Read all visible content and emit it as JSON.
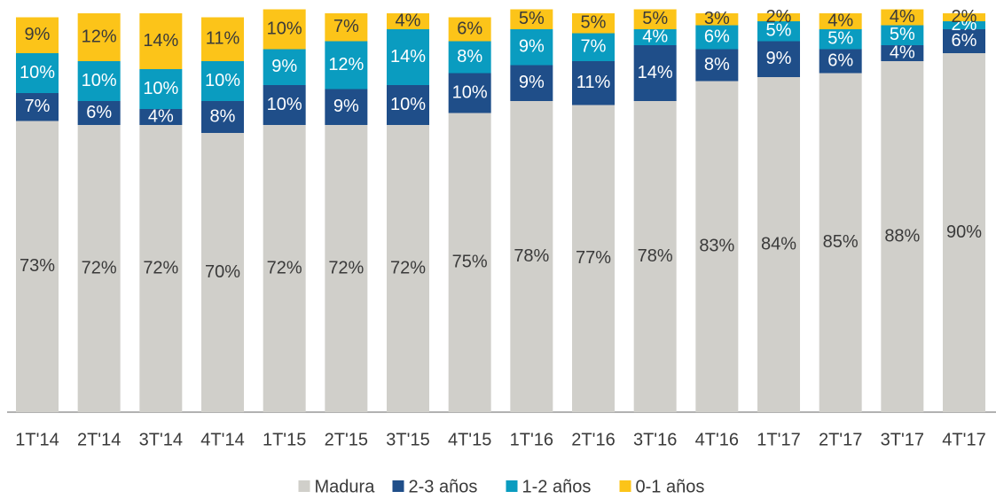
{
  "chart_data": {
    "type": "stacked_bar",
    "categories": [
      "1T'14",
      "2T'14",
      "3T'14",
      "4T'14",
      "1T'15",
      "2T'15",
      "3T'15",
      "4T'15",
      "1T'16",
      "2T'16",
      "3T'16",
      "4T'16",
      "1T'17",
      "2T'17",
      "3T'17",
      "4T'17"
    ],
    "ylim": [
      0,
      100
    ],
    "legend": "bottom",
    "series": [
      {
        "name": "Madura",
        "color": "#d0cfca",
        "label_color": "#3a3a3a",
        "values": [
          73,
          72,
          72,
          70,
          72,
          72,
          72,
          75,
          78,
          77,
          78,
          83,
          84,
          85,
          88,
          90
        ],
        "value_labels": [
          "73%",
          "72%",
          "72%",
          "70%",
          "72%",
          "72%",
          "72%",
          "75%",
          "78%",
          "77%",
          "78%",
          "83%",
          "84%",
          "85%",
          "88%",
          "90%"
        ]
      },
      {
        "name": "2-3 años",
        "color": "#1f4e89",
        "label_color": "#ffffff",
        "values": [
          7,
          6,
          4,
          8,
          10,
          9,
          10,
          10,
          9,
          11,
          14,
          8,
          9,
          6,
          4,
          6
        ],
        "value_labels": [
          "7%",
          "6%",
          "4%",
          "8%",
          "10%",
          "9%",
          "10%",
          "10%",
          "9%",
          "11%",
          "14%",
          "8%",
          "9%",
          "6%",
          "4%",
          "6%"
        ]
      },
      {
        "name": "1-2 años",
        "color": "#0a9cc0",
        "label_color": "#ffffff",
        "values": [
          10,
          10,
          10,
          10,
          9,
          12,
          14,
          8,
          9,
          7,
          4,
          6,
          5,
          5,
          5,
          2
        ],
        "value_labels": [
          "10%",
          "10%",
          "10%",
          "10%",
          "9%",
          "12%",
          "14%",
          "8%",
          "9%",
          "7%",
          "4%",
          "6%",
          "5%",
          "5%",
          "5%",
          "2%"
        ]
      },
      {
        "name": "0-1 años",
        "color": "#fcc419",
        "label_color": "#3a3a3a",
        "values": [
          9,
          12,
          14,
          11,
          10,
          7,
          4,
          6,
          5,
          5,
          5,
          3,
          2,
          4,
          4,
          2
        ],
        "value_labels": [
          "9%",
          "12%",
          "14%",
          "11%",
          "10%",
          "7%",
          "4%",
          "6%",
          "5%",
          "5%",
          "5%",
          "3%",
          "2%",
          "4%",
          "4%",
          "2%"
        ]
      }
    ]
  }
}
